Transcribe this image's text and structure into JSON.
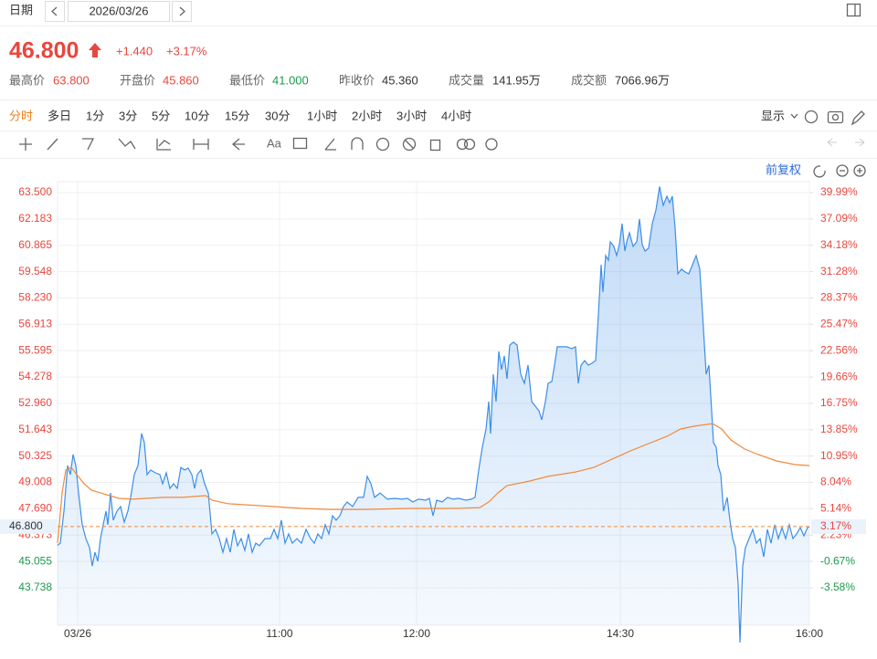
{
  "header": {
    "date_label": "日期",
    "date": "2026/03/26",
    "price": "46.800",
    "change": "+1.440",
    "change_pct": "+3.17%",
    "color": "#e8473e",
    "stats": [
      {
        "label": "最高价",
        "value": "63.800",
        "color": "#e8473e"
      },
      {
        "label": "开盘价",
        "value": "45.860",
        "color": "#e8473e"
      },
      {
        "label": "最低价",
        "value": "41.000",
        "color": "#1a9b4b"
      },
      {
        "label": "昨收价",
        "value": "45.360",
        "color": "#333333"
      },
      {
        "label": "成交量",
        "value": "141.95万",
        "color": "#333333"
      },
      {
        "label": "成交额",
        "value": "7066.96万",
        "color": "#333333"
      }
    ],
    "tabs": [
      "分时",
      "多日",
      "1分",
      "3分",
      "5分",
      "10分",
      "15分",
      "30分",
      "1小时",
      "2小时",
      "3小时",
      "4小时"
    ],
    "active_tab": 0,
    "display": "显示",
    "tool_text": "Aa",
    "adjust": "前复权"
  },
  "chart_data": {
    "type": "line",
    "ylim": [
      41.867,
      64.048
    ],
    "y2lim": [
      -7.7,
      41.2
    ],
    "xlim": [
      0,
      329.2
    ],
    "grid": true,
    "up_color": "#e8473e",
    "down_color": "#1a9b4b",
    "yticks": [
      {
        "value": 63.5,
        "label": "63.500"
      },
      62.183,
      60.865,
      59.548,
      {
        "value": 58.23,
        "label": "58.230"
      },
      56.913,
      55.595,
      54.278,
      {
        "value": 52.96,
        "label": "52.960"
      },
      51.643,
      50.325,
      49.008,
      {
        "value": 47.69,
        "label": "47.690"
      },
      46.373,
      45.055,
      43.738
    ],
    "y2ticks": [
      {
        "value": 39.99,
        "label": "39.99%"
      },
      {
        "value": 37.09,
        "label": "37.09%"
      },
      {
        "value": 34.18,
        "label": "34.18%"
      },
      {
        "value": 31.28,
        "label": "31.28%"
      },
      {
        "value": 28.37,
        "label": "28.37%"
      },
      {
        "value": 25.47,
        "label": "25.47%"
      },
      {
        "value": 22.56,
        "label": "22.56%"
      },
      {
        "value": 19.66,
        "label": "19.66%"
      },
      {
        "value": 16.75,
        "label": "16.75%"
      },
      {
        "value": 13.85,
        "label": "13.85%"
      },
      {
        "value": 10.95,
        "label": "10.95%"
      },
      {
        "value": 8.04,
        "label": "8.04%"
      },
      {
        "value": 5.14,
        "label": "5.14%"
      },
      {
        "value": 2.23,
        "label": "2.23%"
      },
      {
        "value": -0.67,
        "label": "-0.67%"
      },
      {
        "value": -3.58,
        "label": "-3.58%"
      }
    ],
    "xticks": [
      {
        "value": 8.8,
        "label": "03/26"
      },
      {
        "value": 97.2,
        "label": "11:00"
      },
      {
        "value": 157.2,
        "label": "12:00"
      },
      {
        "value": 246.4,
        "label": "14:30"
      },
      {
        "value": 329.2,
        "label": "16:00"
      }
    ],
    "price_line": {
      "value": 46.8,
      "label": "46.800",
      "y2_label": "3.17%",
      "color": "#f08a3c"
    },
    "series": [
      {
        "name": "price",
        "color": "#3d8ee8",
        "fill": true,
        "x": [
          0,
          1.2,
          2.8,
          4.4,
          5.6,
          6.8,
          8,
          9.2,
          10.8,
          12.4,
          14,
          15.2,
          16.4,
          17.6,
          18.8,
          20,
          21.2,
          22,
          23.2,
          24.4,
          26,
          27.6,
          29.2,
          30.8,
          32,
          33.6,
          35.2,
          36.8,
          38,
          39.2,
          40.8,
          42.8,
          44.8,
          46,
          47.6,
          49.2,
          50.8,
          52.4,
          54,
          55.6,
          57.2,
          58.8,
          60,
          61.2,
          62.8,
          64.4,
          66,
          67.6,
          69.2,
          70.8,
          72.4,
          74,
          75.6,
          77.2,
          78.8,
          80.4,
          82,
          83.6,
          85.2,
          86.8,
          88.4,
          90.8,
          93.2,
          94.8,
          96.4,
          98,
          99.6,
          101.2,
          102.8,
          104.8,
          106.8,
          108.8,
          110.8,
          112.4,
          114,
          115.6,
          117.2,
          118.8,
          120.4,
          122,
          123.6,
          125.2,
          126.8,
          129.2,
          131.6,
          134,
          135.6,
          137.2,
          138.8,
          141.2,
          144.4,
          147.6,
          150.8,
          153.2,
          155.6,
          158,
          161.2,
          162.8,
          164.4,
          166,
          168.4,
          170.8,
          173.2,
          175.6,
          178.8,
          181.2,
          182.8,
          184.4,
          186,
          187.6,
          188.8,
          189.6,
          190.8,
          192,
          193.2,
          194.4,
          195.6,
          196.8,
          198,
          199.6,
          201.2,
          202.8,
          204.4,
          206,
          207.6,
          209.2,
          210.8,
          212,
          213.6,
          214.8,
          216.4,
          217.6,
          218.8,
          220.8,
          222.8,
          225.2,
          226.8,
          228,
          229.2,
          230.8,
          232.4,
          234,
          235.6,
          236.8,
          238,
          238.8,
          240,
          241.2,
          242,
          243.6,
          244.8,
          246,
          247.2,
          248.4,
          249.2,
          250.4,
          252,
          253.6,
          254.8,
          256,
          257.2,
          258.8,
          260.4,
          262,
          263.6,
          265.2,
          266.8,
          268,
          269.2,
          270.4,
          271.6,
          273.2,
          274.8,
          276.4,
          278,
          279.6,
          281.2,
          282.8,
          284,
          285.2,
          286.4,
          287.2,
          288.4,
          289.2,
          290.4,
          291.6,
          293.2,
          294.4,
          295.6,
          296.8,
          298,
          298.8,
          300,
          301.2,
          302.8,
          304.4,
          306,
          307.6,
          309.2,
          310.8,
          312.4,
          314,
          315.6,
          317.2,
          318.8,
          320.4,
          322,
          323.6,
          325.2,
          326.8,
          328.4,
          329.2
        ],
        "values": [
          45.86,
          45.97,
          47.57,
          49.85,
          49.4,
          50.4,
          49.85,
          48.48,
          46.89,
          46.2,
          45.75,
          44.83,
          45.52,
          45.06,
          46.2,
          46.89,
          47.57,
          46.89,
          48.48,
          47.12,
          47.57,
          47.8,
          47.02,
          47.57,
          48.26,
          49.4,
          49.85,
          51.45,
          51.0,
          49.4,
          49.63,
          49.49,
          49.4,
          48.94,
          49.49,
          48.71,
          48.94,
          48.71,
          49.76,
          49.63,
          49.72,
          49.4,
          48.71,
          49.4,
          49.63,
          48.94,
          48.48,
          46.43,
          46.66,
          46.2,
          45.52,
          46.2,
          45.52,
          46.66,
          45.84,
          46.2,
          45.61,
          46.43,
          45.52,
          45.97,
          45.84,
          46.2,
          46.2,
          46.66,
          46.2,
          47.12,
          45.97,
          46.43,
          45.97,
          46.2,
          45.97,
          46.66,
          46.2,
          45.97,
          46.43,
          46.2,
          46.89,
          46.43,
          47.34,
          47.12,
          47.34,
          47.8,
          48.03,
          47.8,
          48.26,
          48.26,
          49.31,
          48.94,
          48.26,
          48.48,
          48.17,
          48.21,
          48.17,
          48.21,
          48.03,
          48.17,
          48.12,
          48.21,
          47.34,
          48.12,
          48.03,
          48.26,
          48.17,
          48.21,
          48.12,
          48.17,
          48.26,
          49.63,
          50.77,
          51.68,
          53.05,
          51.45,
          54.42,
          53.05,
          55.56,
          54.65,
          55.33,
          54.19,
          55.88,
          56.02,
          55.88,
          54.42,
          53.96,
          54.87,
          53.05,
          52.82,
          52.59,
          52.14,
          53.05,
          53.96,
          54.05,
          54.87,
          55.79,
          55.79,
          55.79,
          55.7,
          55.79,
          53.96,
          54.87,
          55.1,
          54.87,
          54.97,
          55.1,
          57.38,
          59.89,
          58.53,
          60.35,
          60.12,
          61.04,
          60.81,
          60.35,
          60.9,
          61.95,
          60.58,
          61.04,
          61.49,
          60.81,
          61.04,
          62.18,
          60.9,
          60.58,
          60.72,
          61.95,
          62.63,
          63.8,
          62.86,
          63.32,
          63.0,
          63.32,
          61.72,
          59.44,
          59.67,
          59.53,
          59.44,
          59.89,
          60.35,
          59.67,
          56.7,
          54.42,
          54.87,
          52.59,
          51.0,
          50.77,
          49.85,
          49.4,
          47.57,
          48.26,
          47.12,
          46.2,
          45.75,
          43.92,
          41.0,
          44.83,
          45.75,
          46.2,
          46.66,
          45.97,
          46.2,
          45.29,
          46.66,
          45.97,
          46.89,
          46.2,
          46.75,
          46.2,
          46.89,
          46.2,
          46.43,
          46.75,
          46.34,
          46.75,
          46.8
        ]
      },
      {
        "name": "average",
        "color": "#f08a3c",
        "fill": false,
        "x": [
          0,
          2,
          3.6,
          6,
          8.4,
          11.6,
          14.8,
          18.8,
          22.8,
          26.8,
          32.8,
          38.8,
          46.8,
          54.8,
          64.8,
          67.6,
          74.8,
          94.8,
          106.8,
          118.8,
          134.8,
          154.8,
          174.8,
          184.8,
          188.8,
          192.8,
          196.8,
          206.8,
          214.8,
          226.8,
          234.8,
          242.8,
          250.8,
          258.8,
          266.8,
          272.8,
          278.8,
          286.8,
          290.8,
          294.8,
          300.8,
          306.8,
          314.8,
          322.8,
          329.2
        ],
        "values": [
          45.97,
          48.48,
          49.63,
          49.76,
          49.4,
          48.94,
          48.62,
          48.48,
          48.35,
          48.21,
          48.17,
          48.21,
          48.26,
          48.26,
          48.35,
          48.12,
          47.94,
          47.8,
          47.71,
          47.66,
          47.66,
          47.71,
          47.71,
          47.75,
          48.03,
          48.48,
          48.85,
          49.08,
          49.31,
          49.53,
          49.76,
          50.17,
          50.58,
          50.95,
          51.31,
          51.68,
          51.82,
          51.95,
          51.68,
          51.13,
          50.68,
          50.4,
          50.08,
          49.9,
          49.85
        ]
      }
    ]
  }
}
